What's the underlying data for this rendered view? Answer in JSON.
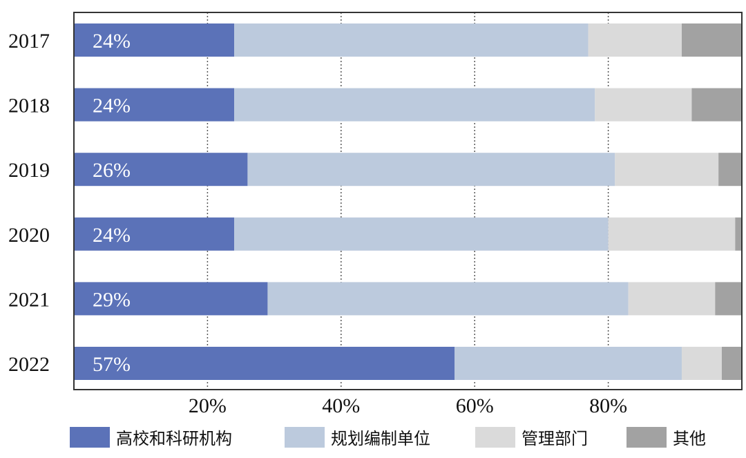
{
  "chart_data": {
    "type": "bar",
    "orientation": "horizontal",
    "stacked": true,
    "categories": [
      "2017",
      "2018",
      "2019",
      "2020",
      "2021",
      "2022"
    ],
    "series": [
      {
        "name": "高校和科研机构",
        "color": "#5b72b8",
        "values": [
          24,
          24,
          26,
          24,
          29,
          57
        ]
      },
      {
        "name": "规划编制单位",
        "color": "#bccadd",
        "values": [
          53,
          54,
          55,
          56,
          54,
          34
        ]
      },
      {
        "name": "管理部门",
        "color": "#dadada",
        "values": [
          14,
          14.5,
          15.5,
          19,
          13,
          6
        ]
      },
      {
        "name": "其他",
        "color": "#a2a2a2",
        "values": [
          9,
          7.5,
          3.5,
          1,
          4,
          3
        ]
      }
    ],
    "data_labels": [
      "24%",
      "24%",
      "26%",
      "24%",
      "29%",
      "57%"
    ],
    "x_ticks": [
      "20%",
      "40%",
      "60%",
      "80%"
    ],
    "x_tick_values": [
      20,
      40,
      60,
      80
    ],
    "xlim": [
      0,
      100
    ],
    "grid": "vertical dotted",
    "legend_position": "bottom"
  }
}
